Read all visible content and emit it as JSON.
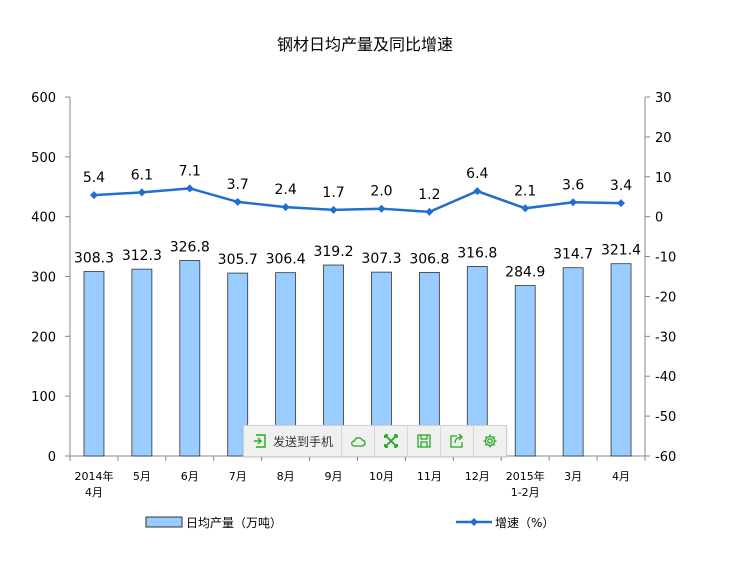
{
  "chart_data": {
    "type": "bar+line",
    "title": "钢材日均产量及同比增速",
    "categories": [
      "2014年\n4月",
      "5月",
      "6月",
      "7月",
      "8月",
      "9月",
      "10月",
      "11月",
      "12月",
      "2015年\n1-2月",
      "3月",
      "4月"
    ],
    "series": [
      {
        "name": "日均产量（万吨）",
        "type": "bar",
        "axis": "left",
        "values": [
          308.3,
          312.3,
          326.8,
          305.7,
          306.4,
          319.2,
          307.3,
          306.8,
          316.8,
          284.9,
          314.7,
          321.4
        ],
        "color": "#99ccff"
      },
      {
        "name": "增速（%）",
        "type": "line",
        "axis": "right",
        "values": [
          5.4,
          6.1,
          7.1,
          3.7,
          2.4,
          1.7,
          2.0,
          1.2,
          6.4,
          2.1,
          3.6,
          3.4
        ],
        "color": "#1f6fd0"
      }
    ],
    "y_left": {
      "ylim": [
        0,
        600
      ],
      "ticks": [
        0,
        100,
        200,
        300,
        400,
        500,
        600
      ]
    },
    "y_right": {
      "ylim": [
        -60,
        30
      ],
      "ticks": [
        -60,
        -50,
        -40,
        -30,
        -20,
        -10,
        0,
        10,
        20,
        30
      ]
    },
    "legend_position": "bottom",
    "grid": false
  },
  "toolbar": {
    "send_label": "发送到手机",
    "icons": [
      "send-to-phone-icon",
      "cloud-icon",
      "fullscreen-icon",
      "save-icon",
      "share-icon",
      "settings-icon"
    ],
    "color": "#22aa22"
  }
}
